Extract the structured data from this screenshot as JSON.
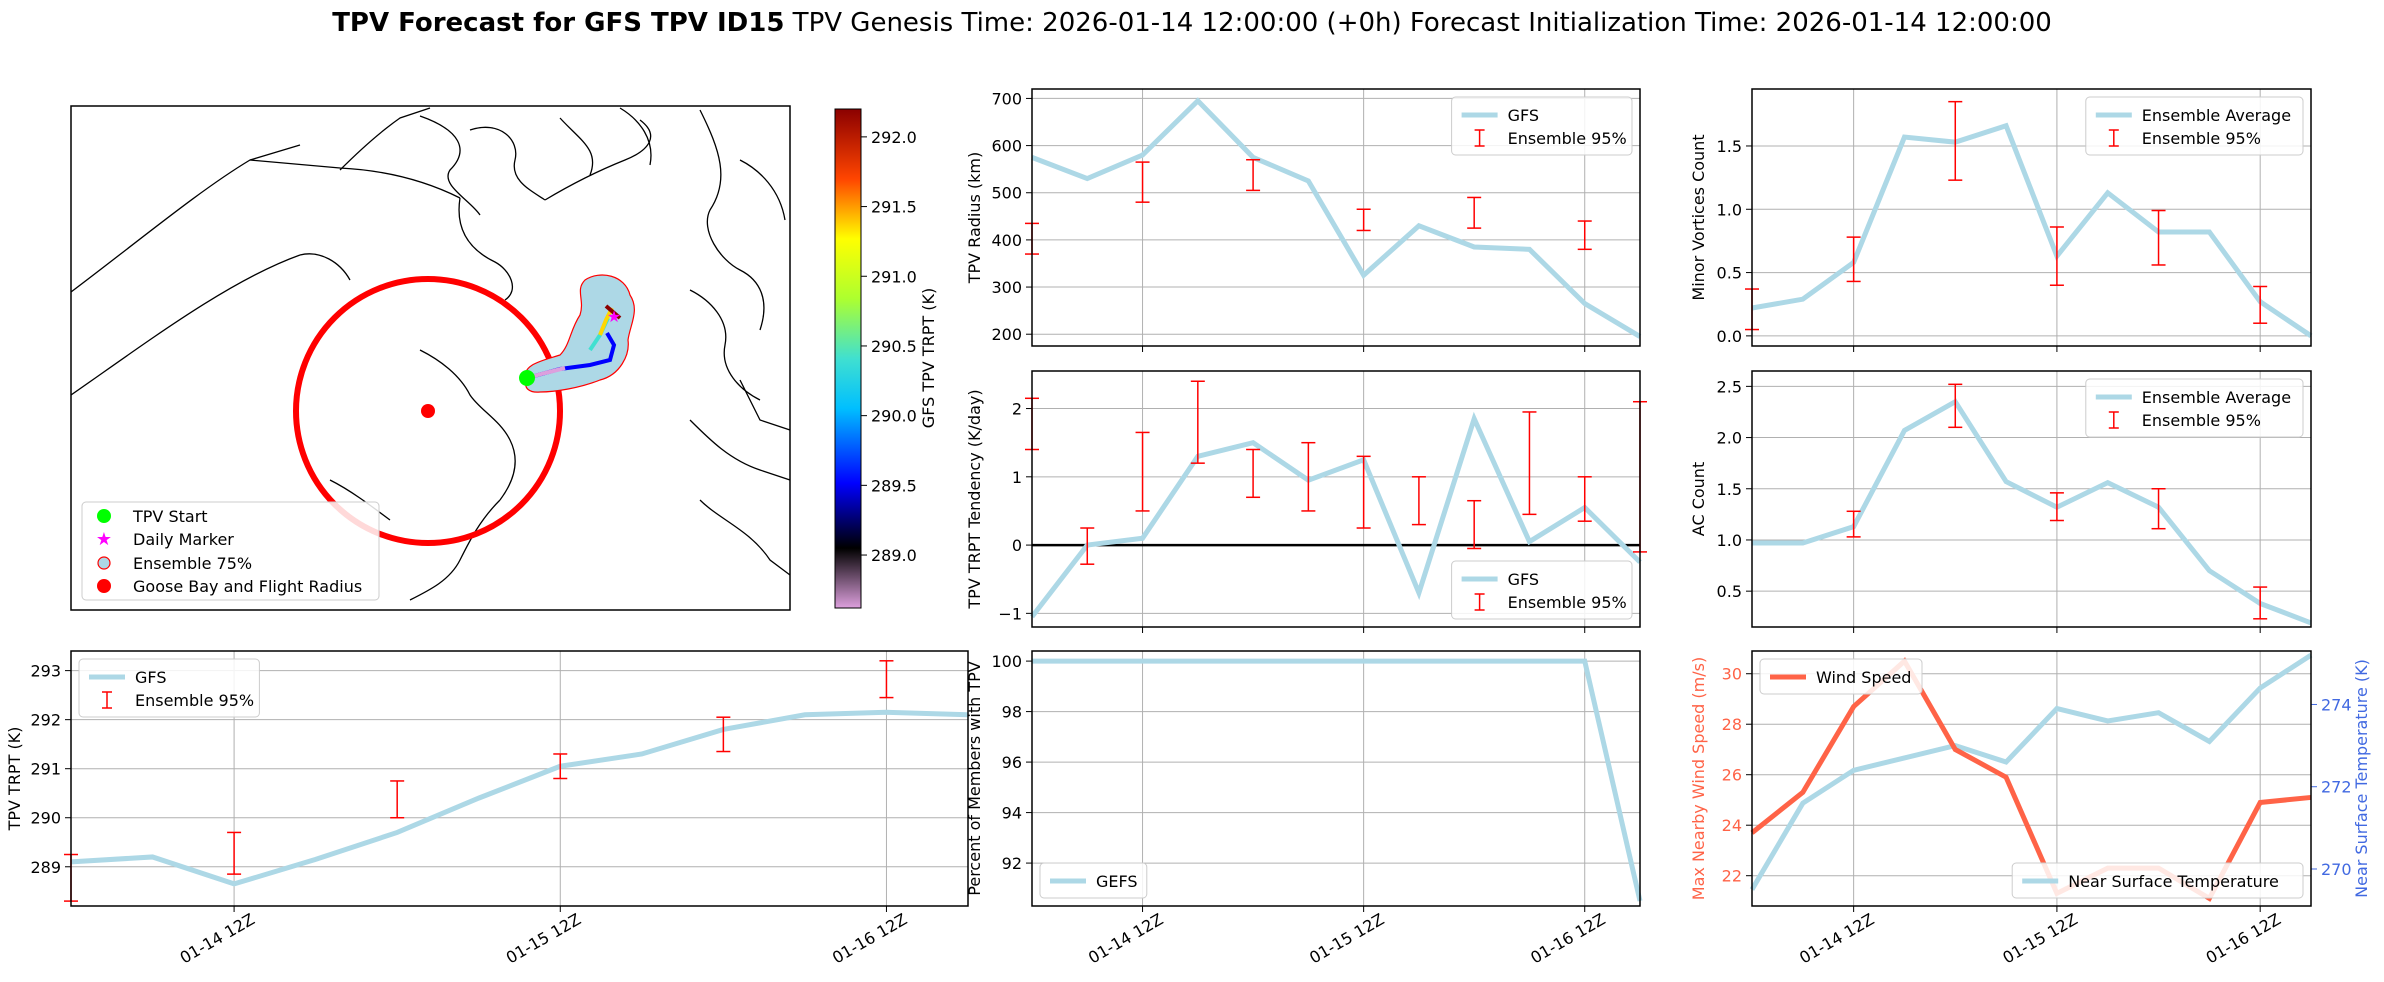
{
  "title": {
    "bold": "TPV Forecast for GFS TPV ID15",
    "rest": "TPV Genesis Time: 2026-01-14 12:00:00 (+0h)   Forecast Initialization Time: 2026-01-14 12:00:00"
  },
  "colors": {
    "line": "#add8e6",
    "error": "#ff0000",
    "wind": "#ff6347",
    "temp_axis": "#4169e1",
    "zero": "#000000"
  },
  "map": {
    "colorbar": {
      "label": "GFS TPV TRPT (K)",
      "ticks": [
        "292.0",
        "291.5",
        "291.0",
        "290.5",
        "290.0",
        "289.5",
        "289.0"
      ]
    },
    "legend": [
      "TPV Start",
      "Daily Marker",
      "Ensemble 75%",
      "Goose Bay and Flight Radius"
    ]
  },
  "chart_data": [
    {
      "id": "radius",
      "type": "line",
      "ylabel": "TPV Radius (km)",
      "ylim": [
        175,
        720
      ],
      "yticks": [
        200,
        300,
        400,
        500,
        600,
        700
      ],
      "legend": [
        "GFS",
        "Ensemble 95%"
      ],
      "legend_pos": "top-right",
      "grid": true,
      "x": [
        0,
        0.5,
        1,
        1.5,
        2,
        2.5,
        3,
        3.5,
        4,
        4.5,
        5,
        5.5
      ],
      "values": [
        575,
        530,
        580,
        695,
        575,
        525,
        325,
        430,
        385,
        380,
        265,
        195
      ],
      "errors": [
        {
          "x": 0,
          "lo": 370,
          "hi": 435
        },
        {
          "x": 1,
          "lo": 480,
          "hi": 565
        },
        {
          "x": 2,
          "lo": 505,
          "hi": 570
        },
        {
          "x": 3,
          "lo": 420,
          "hi": 465
        },
        {
          "x": 4,
          "lo": 425,
          "hi": 490
        },
        {
          "x": 5,
          "lo": 380,
          "hi": 440
        }
      ],
      "xticks": []
    },
    {
      "id": "minor",
      "type": "line",
      "ylabel": "Minor Vortices Count",
      "ylim": [
        -0.08,
        1.95
      ],
      "yticks": [
        "0.0",
        "0.5",
        "1.0",
        "1.5"
      ],
      "legend": [
        "Ensemble Average",
        "Ensemble 95%"
      ],
      "legend_pos": "top-right",
      "grid": true,
      "x": [
        0,
        0.5,
        1,
        1.5,
        2,
        2.5,
        3,
        3.5,
        4,
        4.5,
        5,
        5.5
      ],
      "values": [
        0.22,
        0.29,
        0.58,
        1.57,
        1.53,
        1.66,
        0.63,
        1.13,
        0.82,
        0.82,
        0.27,
        0.0
      ],
      "errors": [
        {
          "x": 0,
          "lo": 0.05,
          "hi": 0.37
        },
        {
          "x": 1,
          "lo": 0.43,
          "hi": 0.78
        },
        {
          "x": 2,
          "lo": 1.23,
          "hi": 1.85
        },
        {
          "x": 3,
          "lo": 0.4,
          "hi": 0.86
        },
        {
          "x": 4,
          "lo": 0.56,
          "hi": 0.99
        },
        {
          "x": 5,
          "lo": 0.1,
          "hi": 0.39
        }
      ],
      "xticks": []
    },
    {
      "id": "tendency",
      "type": "line",
      "ylabel": "TPV TRPT Tendency (K/day)",
      "ylim": [
        -1.2,
        2.55
      ],
      "yticks": [
        "−1",
        "0",
        "1",
        "2"
      ],
      "zero_line": true,
      "legend": [
        "GFS",
        "Ensemble 95%"
      ],
      "legend_pos": "bottom-right",
      "grid": true,
      "x": [
        0,
        0.5,
        1,
        1.5,
        2,
        2.5,
        3,
        3.5,
        4,
        4.5,
        5,
        5.5
      ],
      "values": [
        -1.05,
        0.0,
        0.1,
        1.3,
        1.5,
        0.95,
        1.25,
        -0.7,
        1.85,
        0.05,
        0.55,
        -0.25
      ],
      "errors": [
        {
          "x": 0,
          "lo": 1.4,
          "hi": 2.15
        },
        {
          "x": 0.5,
          "lo": -0.28,
          "hi": 0.25
        },
        {
          "x": 1,
          "lo": 0.5,
          "hi": 1.65
        },
        {
          "x": 1.5,
          "lo": 1.2,
          "hi": 2.4
        },
        {
          "x": 2,
          "lo": 0.7,
          "hi": 1.4
        },
        {
          "x": 2.5,
          "lo": 0.5,
          "hi": 1.5
        },
        {
          "x": 3,
          "lo": 0.25,
          "hi": 1.3
        },
        {
          "x": 3.5,
          "lo": 0.3,
          "hi": 1.0
        },
        {
          "x": 4,
          "lo": -0.05,
          "hi": 0.65
        },
        {
          "x": 4.5,
          "lo": 0.45,
          "hi": 1.95
        },
        {
          "x": 5,
          "lo": 0.35,
          "hi": 1.0
        },
        {
          "x": 5.5,
          "lo": -0.1,
          "hi": 2.1
        }
      ],
      "xticks": []
    },
    {
      "id": "ac",
      "type": "line",
      "ylabel": "AC Count",
      "ylim": [
        0.15,
        2.65
      ],
      "yticks": [
        "0.5",
        "1.0",
        "1.5",
        "2.0",
        "2.5"
      ],
      "legend": [
        "Ensemble Average",
        "Ensemble 95%"
      ],
      "legend_pos": "top-right",
      "grid": true,
      "x": [
        0,
        0.5,
        1,
        1.5,
        2,
        2.5,
        3,
        3.5,
        4,
        4.5,
        5,
        5.5
      ],
      "values": [
        0.97,
        0.97,
        1.13,
        2.07,
        2.35,
        1.57,
        1.32,
        1.56,
        1.32,
        0.7,
        0.38,
        0.19
      ],
      "errors": [
        {
          "x": 1,
          "lo": 1.03,
          "hi": 1.28
        },
        {
          "x": 2,
          "lo": 2.1,
          "hi": 2.52
        },
        {
          "x": 3,
          "lo": 1.19,
          "hi": 1.46
        },
        {
          "x": 4,
          "lo": 1.11,
          "hi": 1.5
        },
        {
          "x": 5,
          "lo": 0.23,
          "hi": 0.54
        }
      ],
      "xticks": []
    },
    {
      "id": "trpt",
      "type": "line",
      "ylabel": "TPV TRPT (K)",
      "ylim": [
        288.2,
        293.4
      ],
      "yticks": [
        "289",
        "290",
        "291",
        "292",
        "293"
      ],
      "legend": [
        "GFS",
        "Ensemble 95%"
      ],
      "legend_pos": "top-left",
      "grid": true,
      "x": [
        0,
        0.5,
        1,
        1.5,
        2,
        2.5,
        3,
        3.5,
        4,
        4.5,
        5,
        5.5
      ],
      "values": [
        289.1,
        289.2,
        288.65,
        289.15,
        289.7,
        290.4,
        291.05,
        291.3,
        291.8,
        292.1,
        292.15,
        292.1
      ],
      "errors": [
        {
          "x": 0,
          "lo": 288.3,
          "hi": 289.25
        },
        {
          "x": 1,
          "lo": 288.85,
          "hi": 289.7
        },
        {
          "x": 2,
          "lo": 290.0,
          "hi": 290.75
        },
        {
          "x": 3,
          "lo": 290.8,
          "hi": 291.3
        },
        {
          "x": 4,
          "lo": 291.35,
          "hi": 292.05
        },
        {
          "x": 5,
          "lo": 292.45,
          "hi": 293.2
        }
      ],
      "xticks": [
        "01-14 12Z",
        "01-15 12Z",
        "01-16 12Z"
      ]
    },
    {
      "id": "percent",
      "type": "line",
      "ylabel": "Percent of Members with TPV",
      "ylim": [
        90.3,
        100.4
      ],
      "yticks": [
        "92",
        "94",
        "96",
        "98",
        "100"
      ],
      "legend": [
        "GEFS"
      ],
      "legend_pos": "bottom-left",
      "grid": true,
      "x": [
        0,
        0.5,
        1,
        1.5,
        2,
        2.5,
        3,
        3.5,
        4,
        4.5,
        5,
        5.5
      ],
      "values": [
        100,
        100,
        100,
        100,
        100,
        100,
        100,
        100,
        100,
        100,
        100,
        90.5
      ],
      "errors": [],
      "xticks": [
        "01-14 12Z",
        "01-15 12Z",
        "01-16 12Z"
      ]
    },
    {
      "id": "wind",
      "type": "line",
      "ylabel": "Max Nearby Wind Speed (m/s)",
      "ylim": [
        20.8,
        30.9
      ],
      "yticks": [
        "22",
        "24",
        "26",
        "28",
        "30"
      ],
      "y2label": "Near Surface Temperature (K)",
      "y2lim": [
        269.1,
        275.3
      ],
      "y2ticks": [
        "270",
        "272",
        "274"
      ],
      "legend": [
        "Wind Speed"
      ],
      "legend2": [
        "Near Surface Temperature"
      ],
      "grid": true,
      "x": [
        0,
        0.5,
        1,
        1.5,
        2,
        2.5,
        3,
        3.5,
        4,
        4.5,
        5,
        5.5
      ],
      "wind_values": [
        23.7,
        25.3,
        28.7,
        30.5,
        27.0,
        25.9,
        21.3,
        22.3,
        22.3,
        21.1,
        24.9,
        25.1
      ],
      "temp_values": [
        269.5,
        271.6,
        272.4,
        272.7,
        273.0,
        272.6,
        273.9,
        273.6,
        273.8,
        273.1,
        274.4,
        275.2
      ],
      "xticks": [
        "01-14 12Z",
        "01-15 12Z",
        "01-16 12Z"
      ]
    }
  ]
}
